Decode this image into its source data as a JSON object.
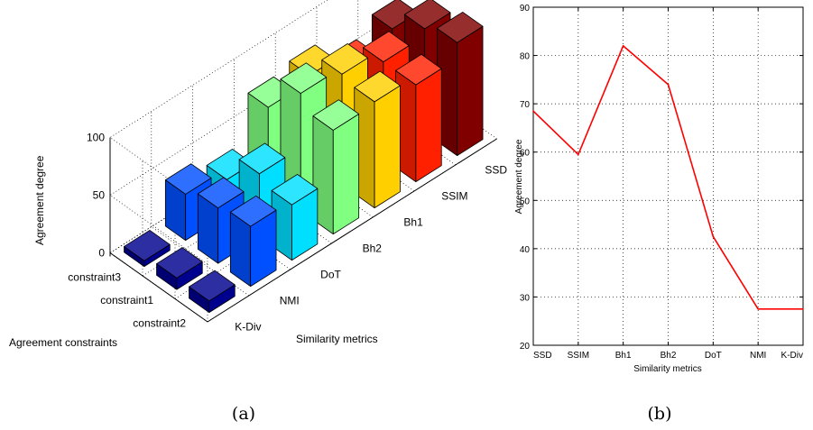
{
  "chart_data": [
    {
      "type": "bar3d",
      "xlabel": "Similarity metrics",
      "ylabel": "Agreement constraints",
      "zlabel": "Agreement degree",
      "metrics": [
        "K-Div",
        "NMI",
        "DoT",
        "Bh2",
        "Bh1",
        "SSIM",
        "SSD"
      ],
      "constraints": [
        "constraint2",
        "constraint1",
        "constraint3"
      ],
      "zlim": [
        0,
        100
      ],
      "zticks": [
        "0",
        "50",
        "100"
      ],
      "series_colors": [
        "#00008f",
        "#0050ff",
        "#00dfff",
        "#80ff80",
        "#ffcf00",
        "#ff2000",
        "#800000"
      ],
      "values": [
        [
          10,
          52,
          48,
          90,
          92,
          84,
          98
        ],
        [
          10,
          48,
          55,
          102,
          96,
          84,
          90
        ],
        [
          5,
          40,
          30,
          70,
          75,
          57,
          70
        ]
      ],
      "grid": true,
      "caption": "(a)"
    },
    {
      "type": "line",
      "xlabel": "Similarity metrics",
      "ylabel": "Agreement degree",
      "categories": [
        "SSD",
        "SSIM",
        "Bh1",
        "Bh2",
        "DoT",
        "NMI",
        "K-Div"
      ],
      "values": [
        68.5,
        59.5,
        82,
        74,
        42.5,
        27.5,
        27.5
      ],
      "ylim": [
        20,
        90
      ],
      "yticks": [
        "20",
        "30",
        "40",
        "50",
        "60",
        "70",
        "80",
        "90"
      ],
      "line_color": "#ff0000",
      "grid": true,
      "caption": "(b)"
    }
  ]
}
